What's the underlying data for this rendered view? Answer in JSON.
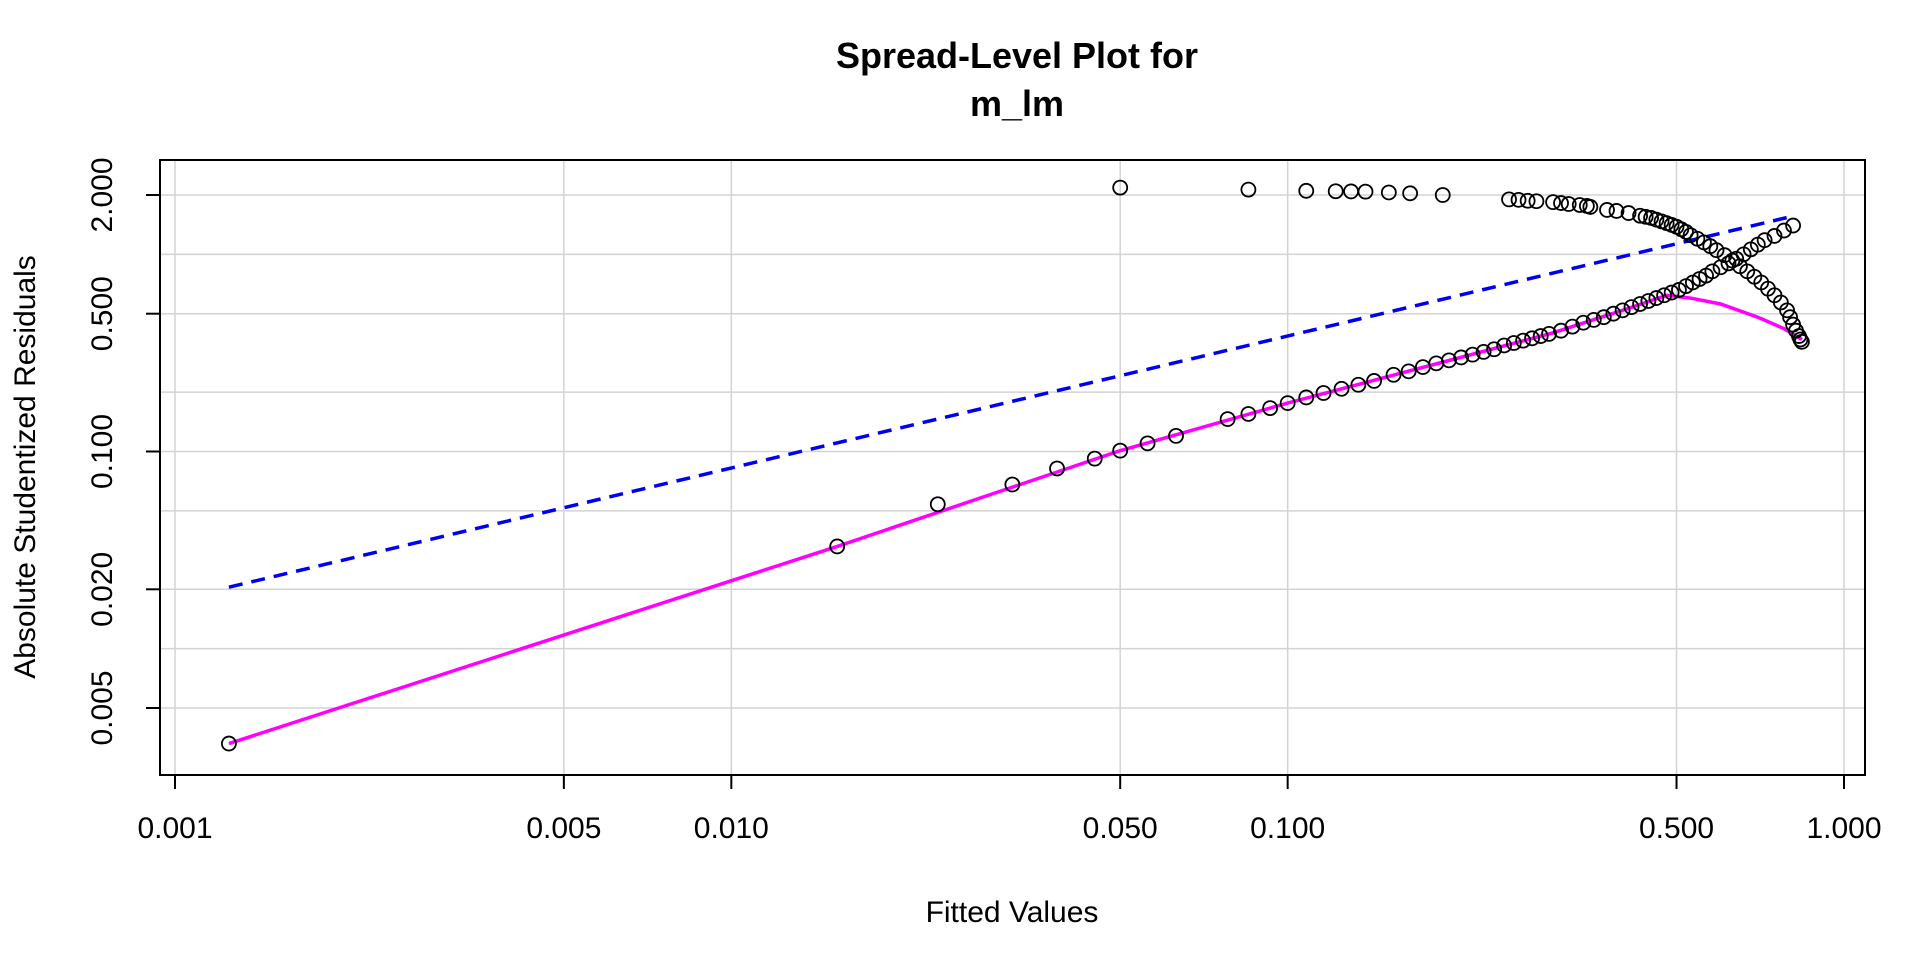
{
  "chart_data": {
    "type": "scatter",
    "title": "Spread-Level Plot for",
    "subtitle": "m_lm",
    "xlabel": "Fitted Values",
    "ylabel": "Absolute Studentized Residuals",
    "x_scale": "log",
    "y_scale": "log",
    "xlim": [
      0.001,
      1.0
    ],
    "ylim": [
      0.003,
      3.0
    ],
    "x_ticks": [
      0.001,
      0.005,
      0.01,
      0.05,
      0.1,
      0.5,
      1.0
    ],
    "x_tick_labels": [
      "0.001",
      "0.005",
      "0.010",
      "0.050",
      "0.100",
      "0.500",
      "1.000"
    ],
    "x_grid": [
      0.001,
      0.005,
      0.01,
      0.05,
      0.1,
      0.5,
      1.0
    ],
    "y_ticks": [
      0.005,
      0.02,
      0.1,
      0.5,
      2.0
    ],
    "y_tick_labels": [
      "0.005",
      "0.020",
      "0.100",
      "0.500",
      "2.000"
    ],
    "y_grid": [
      0.005,
      0.01,
      0.02,
      0.05,
      0.1,
      0.2,
      0.5,
      1.0,
      2.0
    ],
    "grid": true,
    "points": {
      "lower_branch": [
        [
          0.00125,
          0.0033
        ],
        [
          0.0155,
          0.033
        ],
        [
          0.0235,
          0.054
        ],
        [
          0.032,
          0.068
        ],
        [
          0.0385,
          0.082
        ],
        [
          0.045,
          0.092
        ],
        [
          0.05,
          0.101
        ],
        [
          0.056,
          0.11
        ],
        [
          0.063,
          0.12
        ],
        [
          0.078,
          0.146
        ],
        [
          0.085,
          0.155
        ],
        [
          0.093,
          0.166
        ],
        [
          0.1,
          0.176
        ],
        [
          0.108,
          0.188
        ],
        [
          0.116,
          0.198
        ],
        [
          0.125,
          0.208
        ],
        [
          0.134,
          0.218
        ],
        [
          0.143,
          0.228
        ],
        [
          0.155,
          0.245
        ],
        [
          0.165,
          0.255
        ],
        [
          0.175,
          0.268
        ],
        [
          0.185,
          0.28
        ],
        [
          0.195,
          0.29
        ],
        [
          0.205,
          0.3
        ],
        [
          0.215,
          0.31
        ],
        [
          0.225,
          0.32
        ],
        [
          0.235,
          0.33
        ],
        [
          0.245,
          0.345
        ],
        [
          0.255,
          0.355
        ],
        [
          0.265,
          0.365
        ],
        [
          0.275,
          0.375
        ],
        [
          0.285,
          0.385
        ],
        [
          0.295,
          0.395
        ],
        [
          0.31,
          0.41
        ],
        [
          0.325,
          0.43
        ],
        [
          0.34,
          0.45
        ],
        [
          0.355,
          0.465
        ],
        [
          0.37,
          0.48
        ],
        [
          0.385,
          0.5
        ],
        [
          0.4,
          0.52
        ],
        [
          0.415,
          0.54
        ],
        [
          0.43,
          0.56
        ],
        [
          0.445,
          0.58
        ],
        [
          0.46,
          0.6
        ],
        [
          0.475,
          0.62
        ],
        [
          0.49,
          0.64
        ],
        [
          0.505,
          0.66
        ],
        [
          0.52,
          0.69
        ],
        [
          0.535,
          0.72
        ],
        [
          0.55,
          0.75
        ],
        [
          0.565,
          0.78
        ],
        [
          0.58,
          0.82
        ],
        [
          0.6,
          0.86
        ],
        [
          0.62,
          0.9
        ],
        [
          0.64,
          0.95
        ],
        [
          0.66,
          1.0
        ],
        [
          0.68,
          1.06
        ],
        [
          0.7,
          1.12
        ],
        [
          0.72,
          1.18
        ],
        [
          0.75,
          1.24
        ],
        [
          0.78,
          1.32
        ],
        [
          0.81,
          1.4
        ]
      ],
      "upper_branch": [
        [
          0.05,
          2.18
        ],
        [
          0.085,
          2.13
        ],
        [
          0.108,
          2.1
        ],
        [
          0.122,
          2.09
        ],
        [
          0.13,
          2.085
        ],
        [
          0.138,
          2.08
        ],
        [
          0.152,
          2.06
        ],
        [
          0.166,
          2.04
        ],
        [
          0.19,
          2.0
        ],
        [
          0.25,
          1.9
        ],
        [
          0.26,
          1.89
        ],
        [
          0.27,
          1.87
        ],
        [
          0.28,
          1.86
        ],
        [
          0.3,
          1.84
        ],
        [
          0.31,
          1.82
        ],
        [
          0.32,
          1.8
        ],
        [
          0.335,
          1.78
        ],
        [
          0.345,
          1.76
        ],
        [
          0.35,
          1.74
        ],
        [
          0.375,
          1.68
        ],
        [
          0.39,
          1.66
        ],
        [
          0.41,
          1.62
        ],
        [
          0.43,
          1.57
        ],
        [
          0.44,
          1.55
        ],
        [
          0.45,
          1.53
        ],
        [
          0.46,
          1.5
        ],
        [
          0.47,
          1.47
        ],
        [
          0.48,
          1.44
        ],
        [
          0.49,
          1.41
        ],
        [
          0.5,
          1.38
        ],
        [
          0.51,
          1.34
        ],
        [
          0.52,
          1.3
        ],
        [
          0.53,
          1.25
        ],
        [
          0.545,
          1.2
        ],
        [
          0.56,
          1.15
        ],
        [
          0.575,
          1.1
        ],
        [
          0.59,
          1.05
        ],
        [
          0.61,
          0.99
        ],
        [
          0.63,
          0.93
        ],
        [
          0.65,
          0.87
        ],
        [
          0.67,
          0.82
        ],
        [
          0.69,
          0.77
        ],
        [
          0.71,
          0.72
        ],
        [
          0.73,
          0.67
        ],
        [
          0.75,
          0.62
        ],
        [
          0.77,
          0.57
        ],
        [
          0.79,
          0.52
        ],
        [
          0.8,
          0.48
        ],
        [
          0.81,
          0.44
        ],
        [
          0.82,
          0.41
        ],
        [
          0.83,
          0.385
        ],
        [
          0.835,
          0.37
        ],
        [
          0.84,
          0.36
        ]
      ]
    },
    "lines": {
      "dashed_blue": {
        "color": "#0000ee",
        "style": "dashed",
        "points": [
          [
            0.00125,
            0.0205
          ],
          [
            0.8,
            1.55
          ]
        ]
      },
      "solid_magenta": {
        "color": "#ff00ff",
        "style": "solid",
        "points": [
          [
            0.00125,
            0.0033
          ],
          [
            0.0155,
            0.033
          ],
          [
            0.05,
            0.101
          ],
          [
            0.1,
            0.176
          ],
          [
            0.2,
            0.295
          ],
          [
            0.3,
            0.4
          ],
          [
            0.4,
            0.52
          ],
          [
            0.48,
            0.62
          ],
          [
            0.53,
            0.6
          ],
          [
            0.6,
            0.56
          ],
          [
            0.7,
            0.48
          ],
          [
            0.78,
            0.42
          ],
          [
            0.84,
            0.37
          ]
        ]
      }
    },
    "colors": {
      "points": "#000000",
      "grid": "#d3d3d3",
      "frame": "#000000"
    }
  }
}
